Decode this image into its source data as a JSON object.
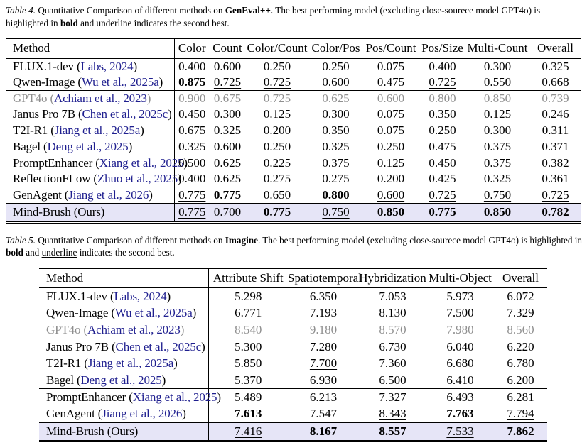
{
  "colors": {
    "citation_link": "#1f1f8f",
    "muted_row": "#8f8f8f",
    "ours_row_highlight": "#e6e5f7"
  },
  "table4": {
    "caption": {
      "label": "Table 4.",
      "intro": " Quantitative Comparison of different methods on ",
      "benchmark": "GenEval++",
      "after_benchmark": ". The best performing model (excluding close-sourece model GPT4o) is highlighted in ",
      "bold_word": "bold",
      "between": " and ",
      "underline_word": "underline",
      "outro": " indicates the second best."
    },
    "columns": [
      "Method",
      "Color",
      "Count",
      "Color/Count",
      "Color/Pos",
      "Pos/Count",
      "Pos/Size",
      "Multi-Count",
      "Overall"
    ],
    "groups": [
      [
        {
          "method": "FLUX.1-dev",
          "cite": "Labs, 2024",
          "values": [
            "0.400",
            "0.600",
            "0.250",
            "0.250",
            "0.075",
            "0.400",
            "0.300",
            "0.325"
          ],
          "marks": [
            "",
            "",
            "",
            "",
            "",
            "",
            "",
            ""
          ]
        },
        {
          "method": "Qwen-Image",
          "cite": "Wu et al., 2025a",
          "values": [
            "0.875",
            "0.725",
            "0.725",
            "0.600",
            "0.475",
            "0.725",
            "0.550",
            "0.668"
          ],
          "marks": [
            "b",
            "u",
            "u",
            "",
            "",
            "u",
            "",
            ""
          ]
        }
      ],
      [
        {
          "method": "GPT4o",
          "cite": "Achiam et al., 2023",
          "muted": true,
          "values": [
            "0.900",
            "0.675",
            "0.725",
            "0.625",
            "0.600",
            "0.800",
            "0.850",
            "0.739"
          ],
          "marks": [
            "",
            "",
            "",
            "",
            "",
            "",
            "",
            ""
          ]
        },
        {
          "method": "Janus Pro 7B",
          "cite": "Chen et al., 2025c",
          "values": [
            "0.450",
            "0.300",
            "0.125",
            "0.300",
            "0.075",
            "0.350",
            "0.125",
            "0.246"
          ],
          "marks": [
            "",
            "",
            "",
            "",
            "",
            "",
            "",
            ""
          ]
        },
        {
          "method": "T2I-R1",
          "cite": "Jiang et al., 2025a",
          "values": [
            "0.675",
            "0.325",
            "0.200",
            "0.350",
            "0.075",
            "0.250",
            "0.300",
            "0.311"
          ],
          "marks": [
            "",
            "",
            "",
            "",
            "",
            "",
            "",
            ""
          ]
        },
        {
          "method": "Bagel",
          "cite": "Deng et al., 2025",
          "values": [
            "0.325",
            "0.600",
            "0.250",
            "0.325",
            "0.250",
            "0.475",
            "0.375",
            "0.371"
          ],
          "marks": [
            "",
            "",
            "",
            "",
            "",
            "",
            "",
            ""
          ]
        }
      ],
      [
        {
          "method": "PromptEnhancer",
          "cite": "Xiang et al., 2025",
          "values": [
            "0.500",
            "0.625",
            "0.225",
            "0.375",
            "0.125",
            "0.450",
            "0.375",
            "0.382"
          ],
          "marks": [
            "",
            "",
            "",
            "",
            "",
            "",
            "",
            ""
          ]
        },
        {
          "method": "ReflectionFLow",
          "cite": "Zhuo et al., 2025",
          "values": [
            "0.400",
            "0.625",
            "0.275",
            "0.275",
            "0.200",
            "0.425",
            "0.325",
            "0.361"
          ],
          "marks": [
            "",
            "",
            "",
            "",
            "",
            "",
            "",
            ""
          ]
        },
        {
          "method": "GenAgent",
          "cite": "Jiang et al., 2026",
          "values": [
            "0.775",
            "0.775",
            "0.650",
            "0.800",
            "0.600",
            "0.725",
            "0.750",
            "0.725"
          ],
          "marks": [
            "u",
            "b",
            "",
            "b",
            "u",
            "u",
            "u",
            "u"
          ]
        }
      ]
    ],
    "ours": {
      "method": "Mind-Brush (Ours)",
      "cite": null,
      "values": [
        "0.775",
        "0.700",
        "0.775",
        "0.750",
        "0.850",
        "0.775",
        "0.850",
        "0.782"
      ],
      "marks": [
        "u",
        "",
        "b",
        "u",
        "b",
        "b",
        "b",
        "b"
      ]
    }
  },
  "table5": {
    "caption": {
      "label": "Table 5.",
      "intro": " Quantitative Comparison of different methods on ",
      "benchmark": "Imagine",
      "after_benchmark": ". The best performing model (excluding close-sourece model GPT4o) is highlighted in ",
      "bold_word": "bold",
      "between": " and ",
      "underline_word": "underline",
      "outro": " indicates the second best."
    },
    "columns": [
      "Method",
      "Attribute Shift",
      "Spatiotemporal",
      "Hybridization",
      "Multi-Object",
      "Overall"
    ],
    "groups": [
      [
        {
          "method": "FLUX.1-dev",
          "cite": "Labs, 2024",
          "values": [
            "5.298",
            "6.350",
            "7.053",
            "5.973",
            "6.072"
          ],
          "marks": [
            "",
            "",
            "",
            "",
            ""
          ]
        },
        {
          "method": "Qwen-Image",
          "cite": "Wu et al., 2025a",
          "values": [
            "6.771",
            "7.193",
            "8.130",
            "7.500",
            "7.329"
          ],
          "marks": [
            "",
            "",
            "",
            "",
            ""
          ]
        }
      ],
      [
        {
          "method": "GPT4o",
          "cite": "Achiam et al., 2023",
          "muted": true,
          "values": [
            "8.540",
            "9.180",
            "8.570",
            "7.980",
            "8.560"
          ],
          "marks": [
            "",
            "",
            "",
            "",
            ""
          ]
        },
        {
          "method": "Janus Pro 7B",
          "cite": "Chen et al., 2025c",
          "values": [
            "5.300",
            "7.280",
            "6.730",
            "6.040",
            "6.220"
          ],
          "marks": [
            "",
            "",
            "",
            "",
            ""
          ]
        },
        {
          "method": "T2I-R1",
          "cite": "Jiang et al., 2025a",
          "values": [
            "5.850",
            "7.700",
            "7.360",
            "6.680",
            "6.780"
          ],
          "marks": [
            "",
            "u",
            "",
            "",
            ""
          ]
        },
        {
          "method": "Bagel",
          "cite": "Deng et al., 2025",
          "values": [
            "5.370",
            "6.930",
            "6.500",
            "6.410",
            "6.200"
          ],
          "marks": [
            "",
            "",
            "",
            "",
            ""
          ]
        }
      ],
      [
        {
          "method": "PromptEnhancer",
          "cite": "Xiang et al., 2025",
          "values": [
            "5.489",
            "6.213",
            "7.327",
            "6.493",
            "6.281"
          ],
          "marks": [
            "",
            "",
            "",
            "",
            ""
          ]
        },
        {
          "method": "GenAgent",
          "cite": "Jiang et al., 2026",
          "values": [
            "7.613",
            "7.547",
            "8.343",
            "7.763",
            "7.794"
          ],
          "marks": [
            "b",
            "",
            "u",
            "b",
            "u"
          ]
        }
      ]
    ],
    "ours": {
      "method": "Mind-Brush (Ours)",
      "cite": null,
      "values": [
        "7.416",
        "8.167",
        "8.557",
        "7.533",
        "7.862"
      ],
      "marks": [
        "u",
        "b",
        "b",
        "u",
        "b"
      ]
    }
  }
}
